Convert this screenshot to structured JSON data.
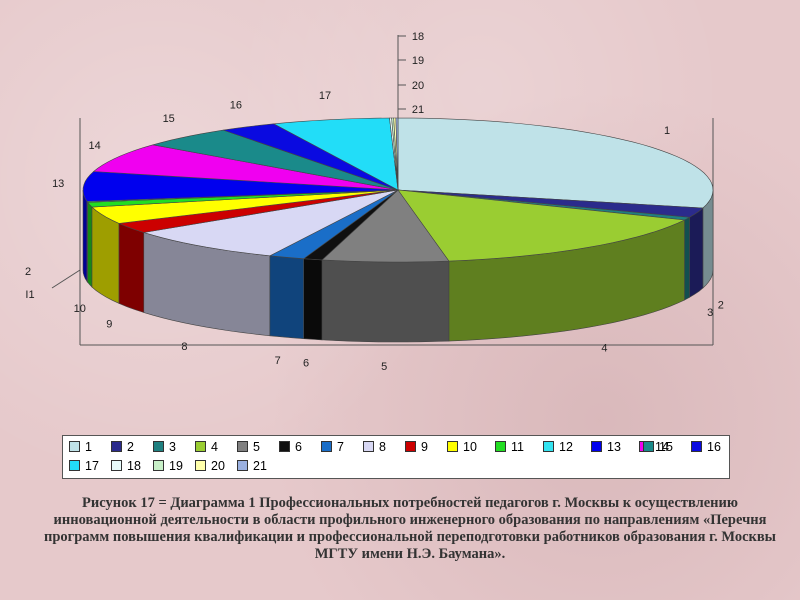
{
  "chart_data": {
    "type": "pie",
    "categories": [
      "1",
      "2",
      "3",
      "4",
      "5",
      "6",
      "7",
      "8",
      "9",
      "10",
      "11",
      "12",
      "13",
      "14",
      "15",
      "16",
      "17",
      "18",
      "19",
      "20",
      "21"
    ],
    "values": [
      27.0,
      2.0,
      0.6,
      14.5,
      6.0,
      0.9,
      1.7,
      7.7,
      2.2,
      3.6,
      1.0,
      0.2,
      6.2,
      6.2,
      4.5,
      2.7,
      5.6,
      0.1,
      0.1,
      0.1,
      0.1
    ],
    "colors": [
      "#bfe2e8",
      "#2b2b8c",
      "#1f8080",
      "#9acd32",
      "#808080",
      "#101010",
      "#1a6ec8",
      "#d8d8f4",
      "#cc0000",
      "#ffff00",
      "#22dd22",
      "#33e3f0",
      "#0000ee",
      "#f000f0",
      "#1a8a8a",
      "#0a0ae0",
      "#22ddf8",
      "#e8fbfb",
      "#c8f0c8",
      "#ffffaa",
      "#9ab0e0"
    ],
    "legend": [
      "1",
      "2",
      "3",
      "4",
      "5",
      "6",
      "7",
      "8",
      "9",
      "10",
      "11",
      "12",
      "13",
      "14",
      "15",
      "16",
      "17",
      "18",
      "19",
      "20",
      "21"
    ],
    "legend_position": "bottom",
    "outer_labels": [
      "1",
      "2",
      "3",
      "4",
      "5",
      "6",
      "7",
      "8",
      "9",
      "10",
      "I1",
      "2",
      "13",
      "14",
      "15",
      "16",
      "17",
      "18",
      "19",
      "20",
      "21"
    ]
  },
  "caption": "Рисунок 17 = Диаграмма 1 Профессиональных потребностей педагогов г. Москвы к осуществлению инновационной деятельности в области профильного инженерного образования по направлениям «Перечня программ повышения квалификации и профессиональной переподготовки работников образования г. Москвы МГТУ имени Н.Э. Баумана»."
}
